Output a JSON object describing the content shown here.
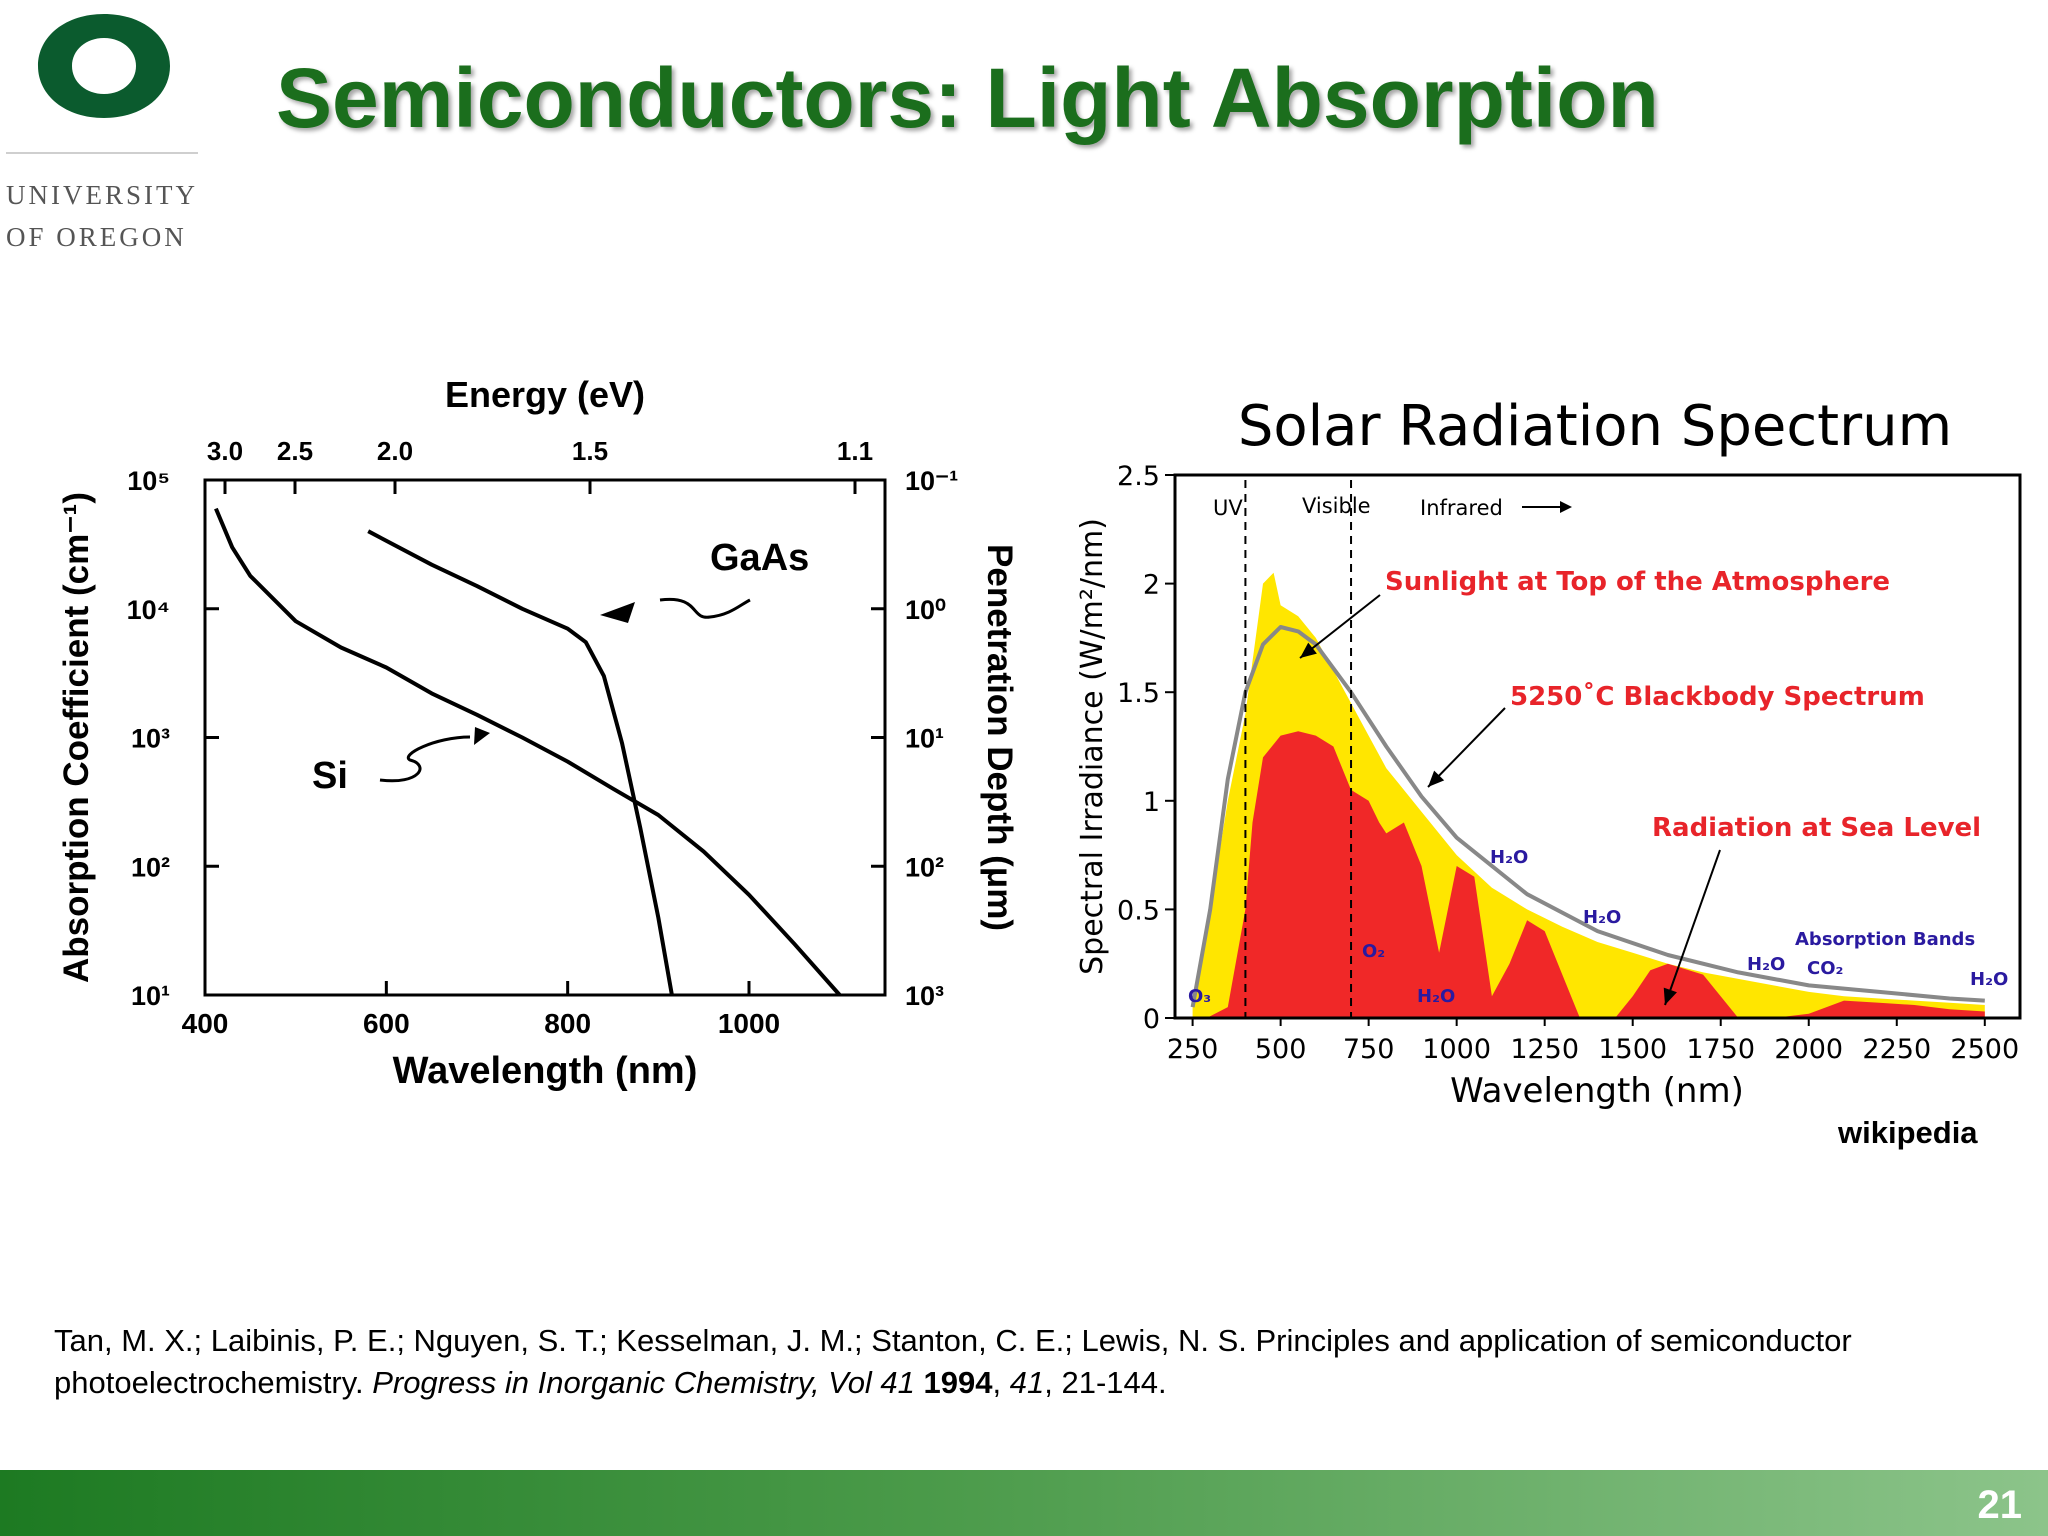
{
  "logo": {
    "line1": "UNIVERSITY",
    "line2": "OF OREGON",
    "color": "#0b5b2e"
  },
  "title": "Semiconductors: Light Absorption",
  "left_figure": {
    "top_axis_title": "Energy (eV)",
    "top_ticks": [
      "3.0",
      "2.5",
      "2.0",
      "1.5",
      "1.1"
    ],
    "left_axis_title": "Absorption Coefficient (cm⁻¹)",
    "left_ticks": [
      "10⁵",
      "10⁴",
      "10³",
      "10²",
      "10¹"
    ],
    "right_axis_title": "Penetration Depth (μm)",
    "right_ticks": [
      "10⁻¹",
      "10⁰",
      "10¹",
      "10²",
      "10³"
    ],
    "bottom_axis_title": "Wavelength (nm)",
    "bottom_ticks": [
      "400",
      "600",
      "800",
      "1000"
    ],
    "labels": {
      "gaas": "GaAs",
      "si": "Si"
    }
  },
  "right_figure": {
    "title": "Solar Radiation Spectrum",
    "y_axis_title": "Spectral Irradiance (W/m²/nm)",
    "x_axis_title": "Wavelength (nm)",
    "y_ticks": [
      "0",
      "0.5",
      "1",
      "1.5",
      "2",
      "2.5"
    ],
    "x_ticks": [
      "250",
      "500",
      "750",
      "1000",
      "1250",
      "1500",
      "1750",
      "2000",
      "2250",
      "2500"
    ],
    "regions": {
      "uv": "UV",
      "visible": "Visible",
      "infrared": "Infrared"
    },
    "annotations": {
      "top_atmosphere": "Sunlight at Top of the Atmosphere",
      "blackbody": "5250˚C Blackbody Spectrum",
      "sea_level": "Radiation at Sea Level",
      "absorption_bands": "Absorption Bands"
    },
    "molecules": {
      "o3": "O₃",
      "o2": "O₂",
      "h2o": "H₂O",
      "co2": "CO₂"
    },
    "colors": {
      "top_of_atmosphere": "#ffe600",
      "sea_level": "#f02828",
      "blackbody": "#888888",
      "annotation_red": "#e8242a",
      "molecule": "#2a1aa0"
    }
  },
  "chart_data": [
    {
      "type": "line",
      "title": "",
      "xlabel": "Wavelength (nm)",
      "ylabel": "Absorption Coefficient (cm⁻¹)",
      "y_scale": "log",
      "xlim": [
        400,
        1150
      ],
      "ylim": [
        10,
        100000
      ],
      "series": [
        {
          "name": "GaAs",
          "x": [
            580,
            650,
            700,
            750,
            800,
            820,
            840,
            860,
            880,
            900,
            915
          ],
          "y": [
            40000,
            22000,
            15000,
            10000,
            7000,
            5500,
            3000,
            900,
            200,
            40,
            10
          ]
        },
        {
          "name": "Si",
          "x": [
            412,
            430,
            450,
            500,
            550,
            600,
            650,
            700,
            750,
            800,
            850,
            900,
            950,
            1000,
            1050,
            1100
          ],
          "y": [
            60000,
            30000,
            18000,
            8000,
            5000,
            3500,
            2200,
            1500,
            1000,
            650,
            400,
            250,
            130,
            60,
            25,
            10
          ]
        }
      ]
    },
    {
      "type": "area",
      "title": "Solar Radiation Spectrum",
      "xlabel": "Wavelength (nm)",
      "ylabel": "Spectral Irradiance (W/m²/nm)",
      "xlim": [
        200,
        2600
      ],
      "ylim": [
        0,
        2.5
      ],
      "series": [
        {
          "name": "Sunlight at Top of the Atmosphere",
          "x": [
            250,
            300,
            350,
            400,
            450,
            480,
            500,
            550,
            600,
            650,
            700,
            750,
            800,
            900,
            1000,
            1100,
            1200,
            1300,
            1400,
            1500,
            1600,
            1700,
            1800,
            1900,
            2000,
            2100,
            2200,
            2300,
            2400,
            2500
          ],
          "y": [
            0.05,
            0.5,
            1.0,
            1.4,
            2.0,
            2.05,
            1.9,
            1.85,
            1.75,
            1.6,
            1.45,
            1.3,
            1.15,
            0.95,
            0.75,
            0.6,
            0.5,
            0.42,
            0.35,
            0.3,
            0.25,
            0.21,
            0.18,
            0.15,
            0.12,
            0.1,
            0.09,
            0.08,
            0.07,
            0.06
          ]
        },
        {
          "name": "Radiation at Sea Level",
          "x": [
            290,
            350,
            400,
            420,
            450,
            500,
            550,
            600,
            650,
            700,
            750,
            780,
            800,
            850,
            900,
            950,
            1000,
            1050,
            1100,
            1150,
            1200,
            1250,
            1300,
            1350,
            1400,
            1450,
            1500,
            1550,
            1600,
            1700,
            1800,
            1900,
            2000,
            2100,
            2200,
            2300,
            2400,
            2500
          ],
          "y": [
            0,
            0.05,
            0.5,
            0.9,
            1.2,
            1.3,
            1.32,
            1.3,
            1.25,
            1.05,
            1.0,
            0.9,
            0.85,
            0.9,
            0.7,
            0.3,
            0.7,
            0.65,
            0.1,
            0.25,
            0.45,
            0.4,
            0.2,
            0.0,
            0.0,
            0.0,
            0.1,
            0.22,
            0.25,
            0.2,
            0.0,
            0.0,
            0.02,
            0.08,
            0.07,
            0.06,
            0.04,
            0.03
          ]
        },
        {
          "name": "5250˚C Blackbody Spectrum",
          "x": [
            250,
            300,
            350,
            400,
            450,
            500,
            550,
            600,
            700,
            800,
            900,
            1000,
            1200,
            1400,
            1600,
            1800,
            2000,
            2200,
            2400,
            2500
          ],
          "y": [
            0.05,
            0.5,
            1.1,
            1.5,
            1.72,
            1.8,
            1.78,
            1.72,
            1.5,
            1.25,
            1.02,
            0.83,
            0.57,
            0.4,
            0.29,
            0.21,
            0.15,
            0.12,
            0.09,
            0.08
          ]
        }
      ]
    }
  ],
  "source_note": "wikipedia",
  "citation": {
    "authors": "Tan, M. X.; Laibinis, P. E.; Nguyen, S. T.; Kesselman, J. M.; Stanton, C. E.; Lewis, N. S. Principles and application of semiconductor photoelectrochemistry. ",
    "journal": "Progress in Inorganic Chemistry, Vol 41",
    "year": "1994",
    "volume": "41",
    "pages": ", 21-144."
  },
  "page_number": "21"
}
